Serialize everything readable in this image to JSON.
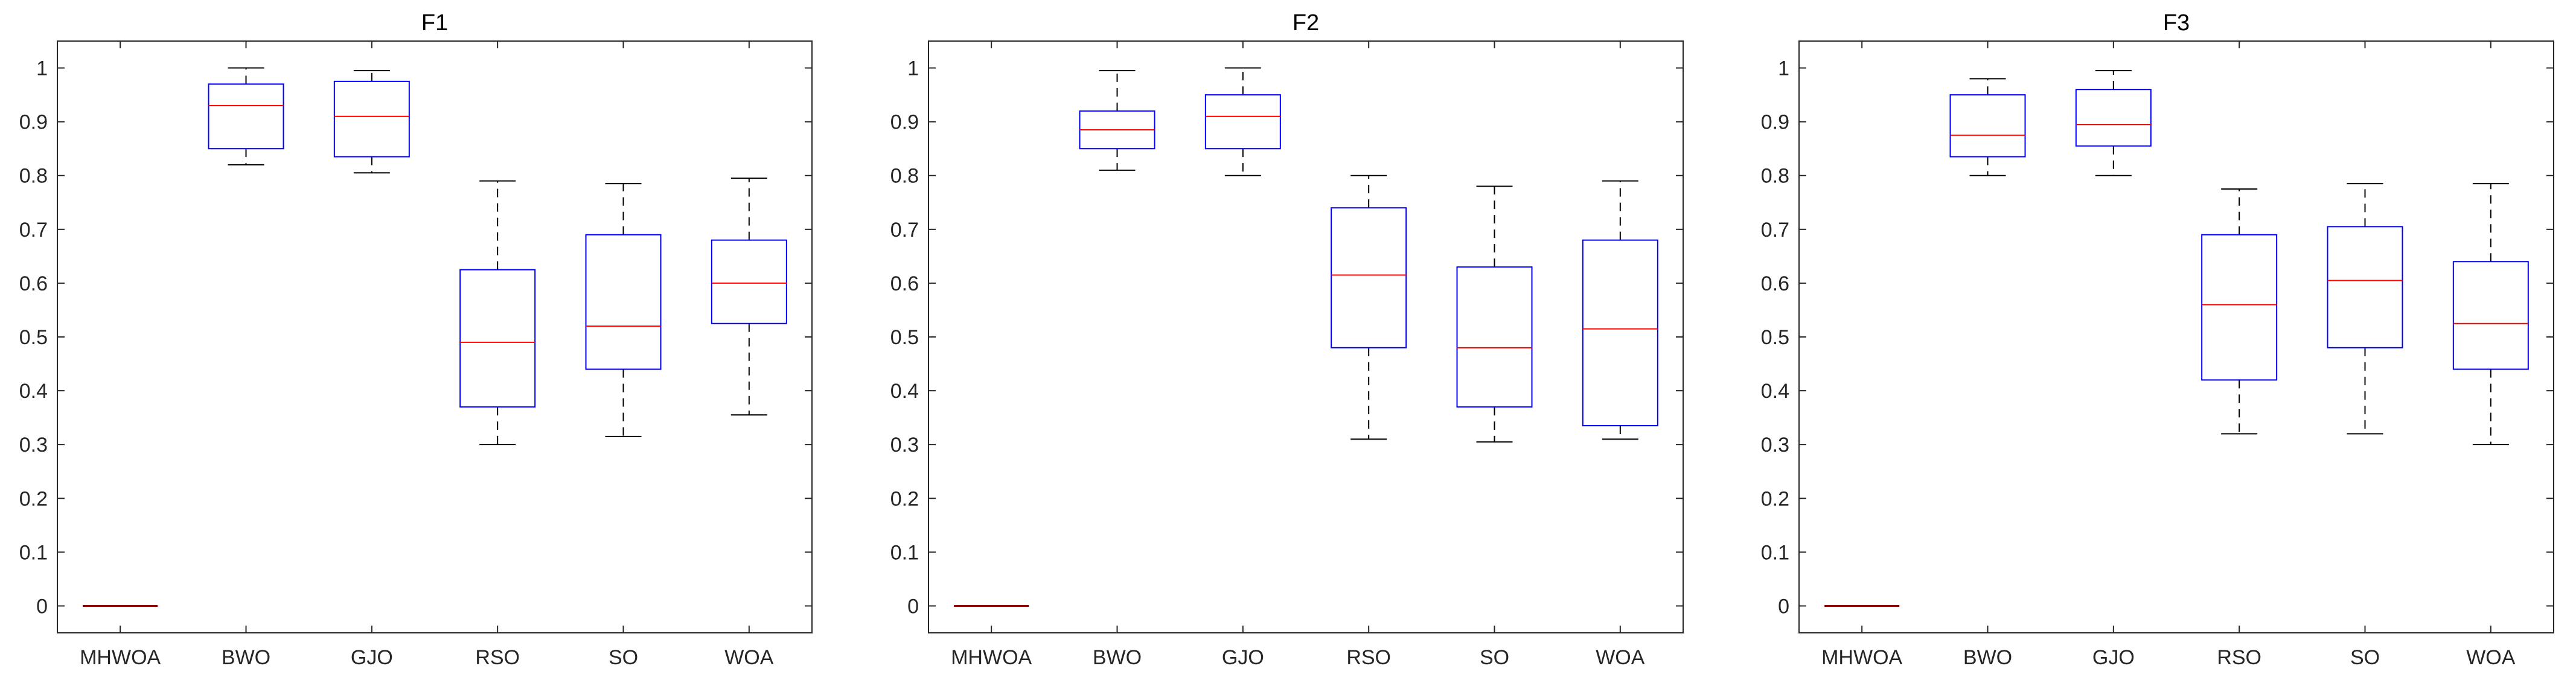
{
  "chart_data": [
    {
      "type": "boxplot",
      "title": "F1",
      "categories": [
        "MHWOA",
        "BWO",
        "GJO",
        "RSO",
        "SO",
        "WOA"
      ],
      "ylim": [
        -0.05,
        1.05
      ],
      "yticks": [
        "0",
        "0.1",
        "0.2",
        "0.3",
        "0.4",
        "0.5",
        "0.6",
        "0.7",
        "0.8",
        "0.9",
        "1"
      ],
      "boxes": [
        {
          "name": "MHWOA",
          "min": 0.0,
          "q1": 0.0,
          "median": 0.0,
          "q3": 0.0,
          "max": 0.0
        },
        {
          "name": "BWO",
          "min": 0.82,
          "q1": 0.85,
          "median": 0.93,
          "q3": 0.97,
          "max": 1.0
        },
        {
          "name": "GJO",
          "min": 0.805,
          "q1": 0.835,
          "median": 0.91,
          "q3": 0.975,
          "max": 0.995
        },
        {
          "name": "RSO",
          "min": 0.3,
          "q1": 0.37,
          "median": 0.49,
          "q3": 0.625,
          "max": 0.79
        },
        {
          "name": "SO",
          "min": 0.315,
          "q1": 0.44,
          "median": 0.52,
          "q3": 0.69,
          "max": 0.785
        },
        {
          "name": "WOA",
          "min": 0.355,
          "q1": 0.525,
          "median": 0.6,
          "q3": 0.68,
          "max": 0.795
        }
      ]
    },
    {
      "type": "boxplot",
      "title": "F2",
      "categories": [
        "MHWOA",
        "BWO",
        "GJO",
        "RSO",
        "SO",
        "WOA"
      ],
      "ylim": [
        -0.05,
        1.05
      ],
      "yticks": [
        "0",
        "0.1",
        "0.2",
        "0.3",
        "0.4",
        "0.5",
        "0.6",
        "0.7",
        "0.8",
        "0.9",
        "1"
      ],
      "boxes": [
        {
          "name": "MHWOA",
          "min": 0.0,
          "q1": 0.0,
          "median": 0.0,
          "q3": 0.0,
          "max": 0.0
        },
        {
          "name": "BWO",
          "min": 0.81,
          "q1": 0.85,
          "median": 0.885,
          "q3": 0.92,
          "max": 0.995
        },
        {
          "name": "GJO",
          "min": 0.8,
          "q1": 0.85,
          "median": 0.91,
          "q3": 0.95,
          "max": 1.0
        },
        {
          "name": "RSO",
          "min": 0.31,
          "q1": 0.48,
          "median": 0.615,
          "q3": 0.74,
          "max": 0.8
        },
        {
          "name": "SO",
          "min": 0.305,
          "q1": 0.37,
          "median": 0.48,
          "q3": 0.63,
          "max": 0.78
        },
        {
          "name": "WOA",
          "min": 0.31,
          "q1": 0.335,
          "median": 0.515,
          "q3": 0.68,
          "max": 0.79
        }
      ]
    },
    {
      "type": "boxplot",
      "title": "F3",
      "categories": [
        "MHWOA",
        "BWO",
        "GJO",
        "RSO",
        "SO",
        "WOA"
      ],
      "ylim": [
        -0.05,
        1.05
      ],
      "yticks": [
        "0",
        "0.1",
        "0.2",
        "0.3",
        "0.4",
        "0.5",
        "0.6",
        "0.7",
        "0.8",
        "0.9",
        "1"
      ],
      "boxes": [
        {
          "name": "MHWOA",
          "min": 0.0,
          "q1": 0.0,
          "median": 0.0,
          "q3": 0.0,
          "max": 0.0
        },
        {
          "name": "BWO",
          "min": 0.8,
          "q1": 0.835,
          "median": 0.875,
          "q3": 0.95,
          "max": 0.98
        },
        {
          "name": "GJO",
          "min": 0.8,
          "q1": 0.855,
          "median": 0.895,
          "q3": 0.96,
          "max": 0.995
        },
        {
          "name": "RSO",
          "min": 0.32,
          "q1": 0.42,
          "median": 0.56,
          "q3": 0.69,
          "max": 0.775
        },
        {
          "name": "SO",
          "min": 0.32,
          "q1": 0.48,
          "median": 0.605,
          "q3": 0.705,
          "max": 0.785
        },
        {
          "name": "WOA",
          "min": 0.3,
          "q1": 0.44,
          "median": 0.525,
          "q3": 0.64,
          "max": 0.785
        }
      ]
    }
  ],
  "colors": {
    "box": "#0000ff",
    "median": "#ff0000",
    "whisker": "#000000",
    "axis": "#262626",
    "mhwoa_line": "#8b0000"
  }
}
